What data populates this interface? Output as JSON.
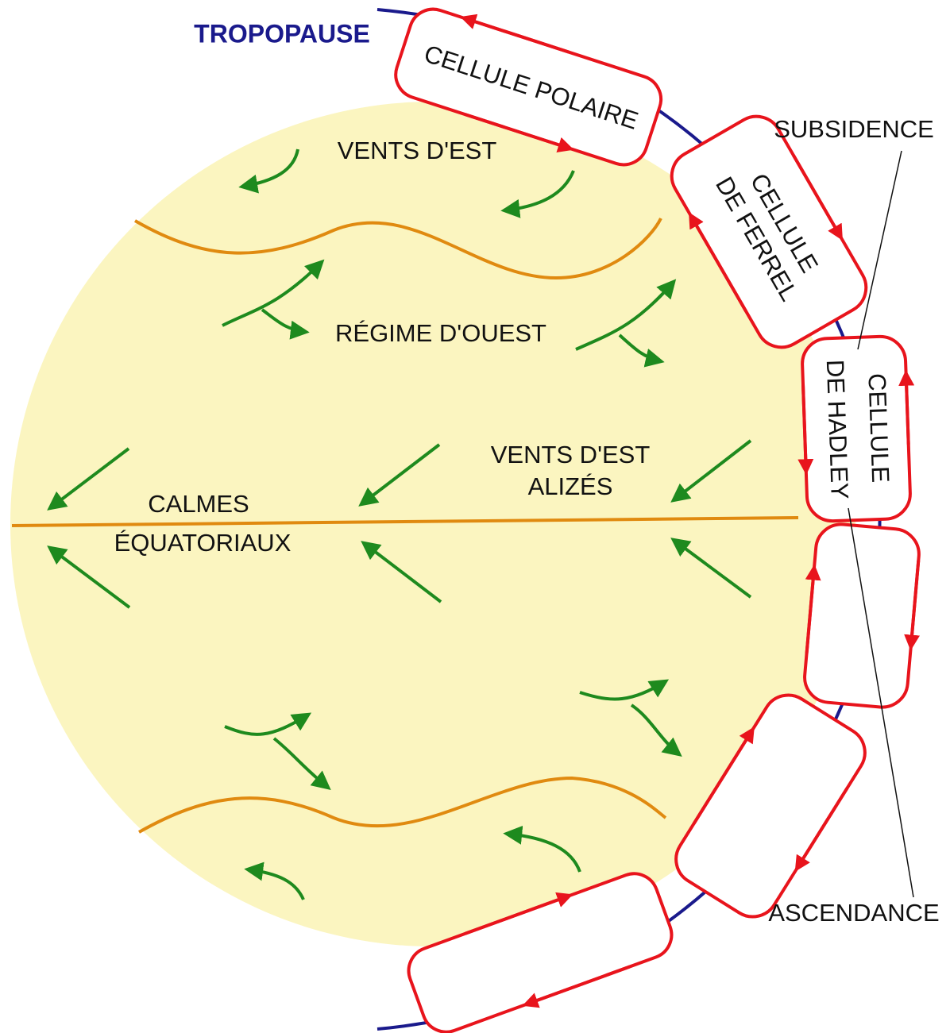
{
  "tropopause": "TROPOPAUSE",
  "cells": [
    {
      "lines": [
        "CELLULE POLAIRE"
      ]
    },
    {
      "lines": [
        "CELLULE",
        "DE FERREL"
      ]
    },
    {
      "lines": [
        "CELLULE",
        "DE HADLEY"
      ]
    }
  ],
  "labels": {
    "subsidence": "SUBSIDENCE",
    "ascendance": "ASCENDANCE"
  },
  "zones": [
    {
      "lines": [
        "VENTS D'EST"
      ]
    },
    {
      "lines": [
        "RÉGIME D'OUEST"
      ]
    },
    {
      "lines": [
        "VENTS D'EST",
        "ALIZÉS"
      ]
    },
    {
      "lines": [
        "CALMES",
        "ÉQUATORIAUX"
      ]
    }
  ]
}
